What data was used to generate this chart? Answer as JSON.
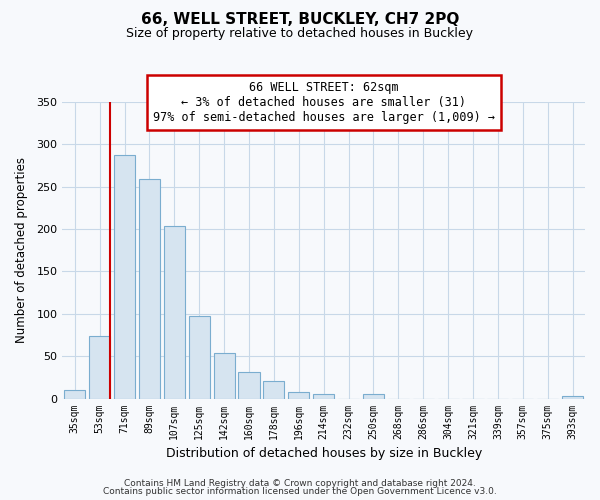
{
  "title": "66, WELL STREET, BUCKLEY, CH7 2PQ",
  "subtitle": "Size of property relative to detached houses in Buckley",
  "xlabel": "Distribution of detached houses by size in Buckley",
  "ylabel": "Number of detached properties",
  "categories": [
    "35sqm",
    "53sqm",
    "71sqm",
    "89sqm",
    "107sqm",
    "125sqm",
    "142sqm",
    "160sqm",
    "178sqm",
    "196sqm",
    "214sqm",
    "232sqm",
    "250sqm",
    "268sqm",
    "286sqm",
    "304sqm",
    "321sqm",
    "339sqm",
    "357sqm",
    "375sqm",
    "393sqm"
  ],
  "values": [
    10,
    74,
    287,
    259,
    204,
    97,
    54,
    31,
    21,
    8,
    5,
    0,
    5,
    0,
    0,
    0,
    0,
    0,
    0,
    0,
    3
  ],
  "bar_facecolor": "#d6e4f0",
  "bar_edgecolor": "#7aadcf",
  "highlight_index": 1,
  "red_line_color": "#cc0000",
  "ylim": [
    0,
    350
  ],
  "yticks": [
    0,
    50,
    100,
    150,
    200,
    250,
    300,
    350
  ],
  "annotation_lines": [
    "66 WELL STREET: 62sqm",
    "← 3% of detached houses are smaller (31)",
    "97% of semi-detached houses are larger (1,009) →"
  ],
  "footer_line1": "Contains HM Land Registry data © Crown copyright and database right 2024.",
  "footer_line2": "Contains public sector information licensed under the Open Government Licence v3.0.",
  "background_color": "#f7f9fc",
  "grid_color": "#c8d8e8",
  "ann_box_edgecolor": "#cc0000",
  "ann_box_facecolor": "#ffffff"
}
